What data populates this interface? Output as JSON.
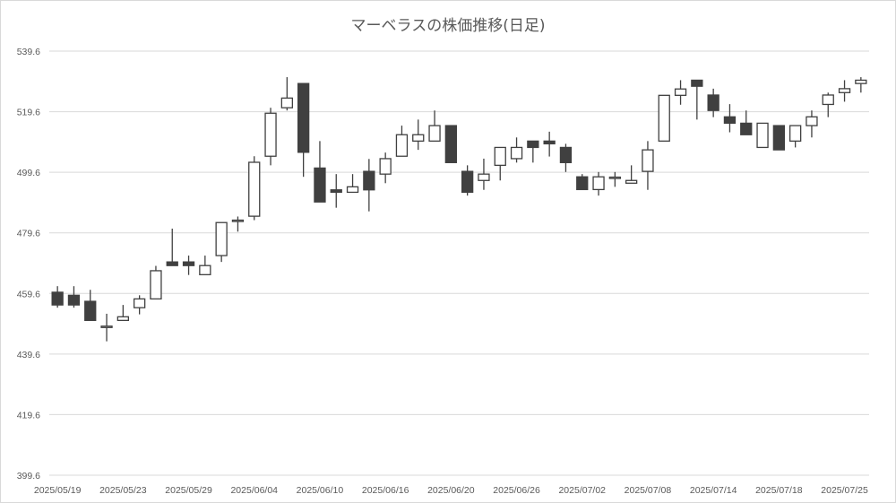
{
  "chart_data": {
    "type": "candlestick",
    "title": "マーベラスの株価推移(日足)",
    "xlabel": "",
    "ylabel": "",
    "ylim": [
      399.6,
      539.6
    ],
    "yticks": [
      "399.6",
      "419.6",
      "439.6",
      "459.6",
      "479.6",
      "499.6",
      "519.6",
      "539.6"
    ],
    "grid": true,
    "legend": "none",
    "colors": {
      "up_fill": "#ffffff",
      "down_fill": "#404040",
      "outline": "#404040",
      "grid": "#d9d9d9"
    },
    "xtick_labels": [
      "2025/05/19",
      "2025/05/23",
      "2025/05/29",
      "2025/06/04",
      "2025/06/10",
      "2025/06/16",
      "2025/06/20",
      "2025/06/26",
      "2025/07/02",
      "2025/07/08",
      "2025/07/14",
      "2025/07/18",
      "2025/07/25"
    ],
    "dates": [
      "2025/05/19",
      "2025/05/20",
      "2025/05/21",
      "2025/05/22",
      "2025/05/23",
      "2025/05/26",
      "2025/05/27",
      "2025/05/28",
      "2025/05/29",
      "2025/05/30",
      "2025/06/02",
      "2025/06/03",
      "2025/06/04",
      "2025/06/05",
      "2025/06/06",
      "2025/06/09",
      "2025/06/10",
      "2025/06/11",
      "2025/06/12",
      "2025/06/13",
      "2025/06/16",
      "2025/06/17",
      "2025/06/18",
      "2025/06/19",
      "2025/06/20",
      "2025/06/23",
      "2025/06/24",
      "2025/06/25",
      "2025/06/26",
      "2025/06/27",
      "2025/06/30",
      "2025/07/01",
      "2025/07/02",
      "2025/07/03",
      "2025/07/04",
      "2025/07/07",
      "2025/07/08",
      "2025/07/09",
      "2025/07/10",
      "2025/07/11",
      "2025/07/14",
      "2025/07/15",
      "2025/07/16",
      "2025/07/17",
      "2025/07/18",
      "2025/07/22",
      "2025/07/23",
      "2025/07/24",
      "2025/07/25",
      "2025/07/28"
    ],
    "ohlc": [
      [
        460.0,
        462.0,
        454.9,
        455.8
      ],
      [
        459.0,
        462.0,
        454.9,
        455.8
      ],
      [
        457.0,
        460.8,
        450.7,
        450.7
      ],
      [
        448.8,
        452.9,
        443.8,
        448.8
      ],
      [
        450.7,
        455.8,
        450.7,
        451.9
      ],
      [
        454.9,
        459.0,
        452.7,
        457.8
      ],
      [
        457.8,
        468.7,
        457.8,
        467.1
      ],
      [
        470.0,
        481.0,
        468.8,
        468.8
      ],
      [
        470.0,
        472.1,
        465.7,
        468.8
      ],
      [
        465.8,
        472.1,
        465.8,
        468.8
      ],
      [
        472.1,
        483.0,
        470.0,
        483.0
      ],
      [
        483.8,
        485.0,
        480.0,
        483.8
      ],
      [
        485.1,
        504.9,
        483.8,
        502.9
      ],
      [
        504.9,
        520.9,
        501.9,
        519.1
      ],
      [
        520.9,
        531.0,
        520.0,
        524.1
      ],
      [
        528.9,
        528.9,
        498.1,
        506.2
      ],
      [
        501.0,
        509.9,
        489.8,
        489.8
      ],
      [
        493.8,
        499.0,
        487.9,
        493.0
      ],
      [
        493.0,
        499.0,
        493.0,
        494.8
      ],
      [
        499.9,
        504.0,
        486.7,
        493.8
      ],
      [
        499.0,
        506.1,
        496.0,
        504.1
      ],
      [
        504.9,
        515.0,
        504.9,
        512.0
      ],
      [
        509.9,
        517.0,
        507.0,
        512.0
      ],
      [
        509.9,
        520.0,
        509.9,
        515.0
      ],
      [
        515.0,
        515.0,
        502.8,
        502.8
      ],
      [
        499.9,
        501.9,
        491.9,
        493.0
      ],
      [
        496.9,
        504.1,
        493.8,
        499.0
      ],
      [
        501.9,
        507.8,
        496.9,
        507.8
      ],
      [
        504.1,
        511.1,
        502.8,
        507.8
      ],
      [
        509.9,
        509.9,
        502.8,
        507.8
      ],
      [
        509.9,
        513.0,
        504.8,
        509.0
      ],
      [
        507.8,
        509.0,
        499.7,
        502.8
      ],
      [
        498.1,
        499.0,
        493.9,
        493.9
      ],
      [
        493.9,
        499.7,
        491.9,
        498.1
      ],
      [
        498.0,
        499.7,
        494.8,
        498.0
      ],
      [
        496.0,
        501.9,
        496.0,
        496.9
      ],
      [
        499.9,
        509.9,
        493.8,
        507.0
      ],
      [
        509.9,
        525.0,
        509.9,
        525.0
      ],
      [
        525.0,
        530.0,
        521.9,
        527.1
      ],
      [
        530.0,
        530.0,
        517.0,
        528.0
      ],
      [
        525.1,
        527.2,
        517.8,
        520.0
      ],
      [
        517.9,
        522.1,
        512.8,
        515.8
      ],
      [
        515.8,
        520.0,
        512.0,
        512.0
      ],
      [
        507.8,
        515.8,
        507.8,
        515.8
      ],
      [
        515.0,
        515.0,
        507.0,
        507.0
      ],
      [
        509.9,
        515.0,
        507.8,
        515.0
      ],
      [
        515.0,
        520.0,
        511.1,
        517.9
      ],
      [
        522.0,
        525.9,
        517.8,
        525.1
      ],
      [
        525.9,
        530.0,
        522.9,
        527.2
      ],
      [
        528.9,
        531.0,
        525.9,
        530.0
      ]
    ]
  }
}
